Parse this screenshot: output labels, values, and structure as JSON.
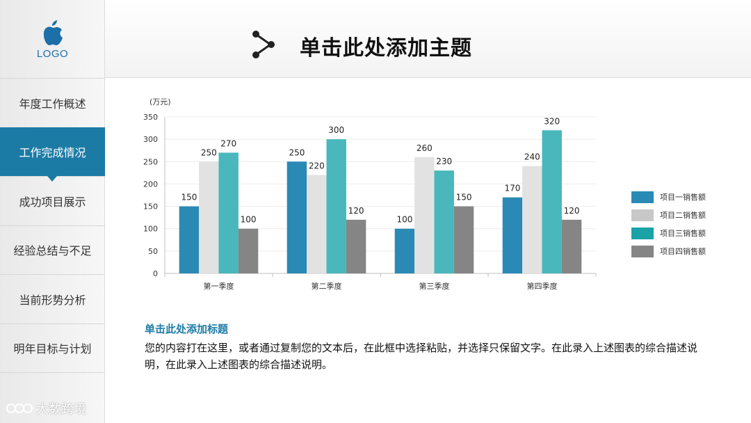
{
  "sidebar": {
    "logo_text": "LOGO",
    "items": [
      {
        "label": "年度工作概述",
        "active": false
      },
      {
        "label": "工作完成情况",
        "active": true
      },
      {
        "label": "成功项目展示",
        "active": false
      },
      {
        "label": "经验总结与不足",
        "active": false
      },
      {
        "label": "当前形势分析",
        "active": false
      },
      {
        "label": "明年目标与计划",
        "active": false
      }
    ],
    "watermark": "大数跨境"
  },
  "header": {
    "title": "单击此处添加主题"
  },
  "content": {
    "subtitle": "单击此处添加标题",
    "description": "您的内容打在这里，或者通过复制您的文本后，在此框中选择粘贴，并选择只保留文字。在此录入上述图表的综合描述说明，在此录入上述图表的综合描述说明。"
  },
  "chart_data": {
    "type": "bar",
    "title": "",
    "ylabel": "(万元)",
    "xlabel": "",
    "ylim": [
      0,
      350
    ],
    "yticks": [
      0,
      50,
      100,
      150,
      200,
      250,
      300,
      350
    ],
    "grid": true,
    "legend_position": "right",
    "categories": [
      "第一季度",
      "第二季度",
      "第三季度",
      "第四季度"
    ],
    "series": [
      {
        "name": "项目一销售额",
        "color": "#2a8ab5",
        "values": [
          150,
          250,
          100,
          170
        ]
      },
      {
        "name": "项目二销售额",
        "color": "#e2e2e2",
        "values": [
          250,
          220,
          260,
          240
        ]
      },
      {
        "name": "项目三销售额",
        "color": "#49b7bb",
        "values": [
          270,
          300,
          230,
          320
        ]
      },
      {
        "name": "项目四销售额",
        "color": "#858585",
        "values": [
          100,
          120,
          150,
          120
        ]
      }
    ]
  },
  "colors": {
    "accent": "#1c7ba5"
  }
}
